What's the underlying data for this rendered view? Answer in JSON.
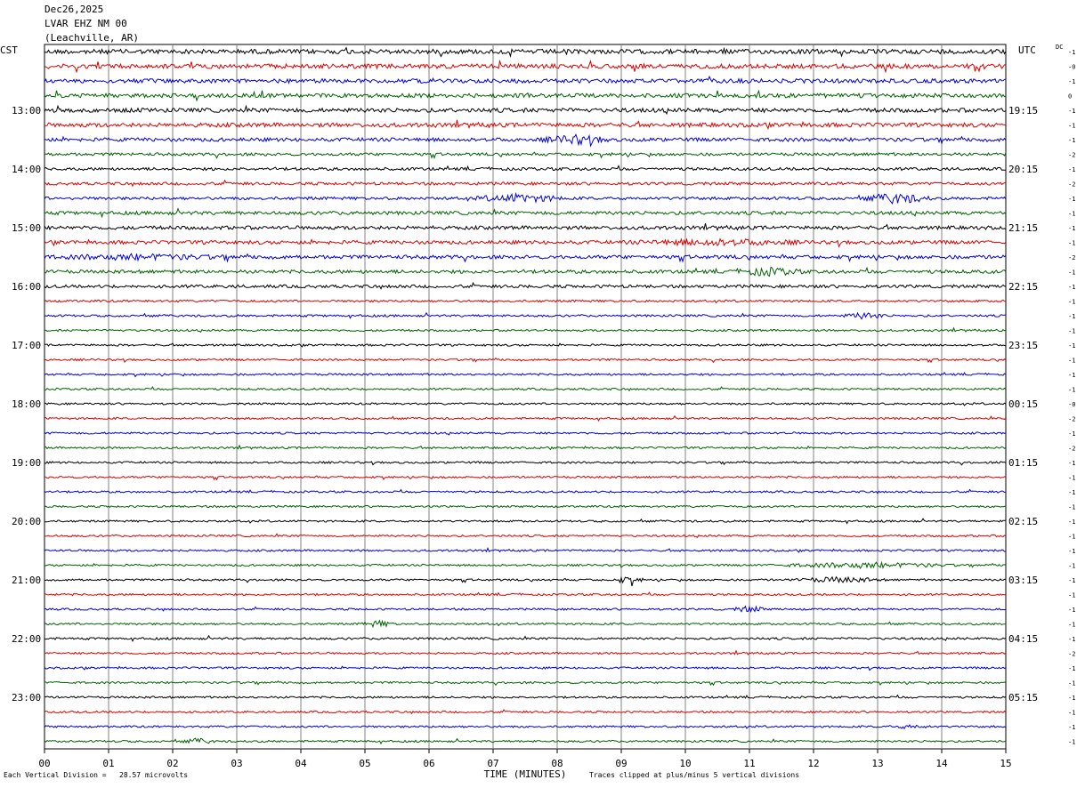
{
  "header": {
    "date": "Dec26,2025",
    "station": "LVAR EHZ NM 00",
    "location": "(Leachville, AR)"
  },
  "axes": {
    "left_tz": "CST",
    "right_tz": "UTC",
    "dc_label": "DC",
    "xlabel": "TIME (MINUTES)"
  },
  "footer": {
    "scale_note": "Each Vertical Division =   28.57 microvolts",
    "clip_note": "Traces clipped at plus/minus 5 vertical divisions"
  },
  "colors": {
    "trace_cycle": [
      "#000000",
      "#dd0000",
      "#0000dd",
      "#006400"
    ],
    "grid": "#808080"
  },
  "chart_data": {
    "type": "line",
    "x_ticks": [
      "00",
      "01",
      "02",
      "03",
      "04",
      "05",
      "06",
      "07",
      "08",
      "09",
      "10",
      "11",
      "12",
      "13",
      "14",
      "15"
    ],
    "xlim": [
      0,
      15
    ],
    "rows_per_hour": 4,
    "left_hour_labels": [
      "13:00",
      "14:00",
      "15:00",
      "16:00",
      "17:00",
      "18:00",
      "19:00",
      "20:00",
      "21:00",
      "22:00",
      "23:00"
    ],
    "right_hour_labels": [
      "19:15",
      "20:15",
      "21:15",
      "22:15",
      "23:15",
      "00:15",
      "01:15",
      "02:15",
      "03:15",
      "04:15",
      "05:15"
    ],
    "dc_offsets": [
      "-1",
      "-0",
      "-1",
      "0",
      "-1",
      "-1",
      "-1",
      "-2",
      "-1",
      "-2",
      "-1",
      "-1",
      "-1",
      "-1",
      "-2",
      "-1",
      "-1",
      "-1",
      "-1",
      "-1",
      "-1",
      "-1",
      "-1",
      "-1",
      "-0",
      "-2",
      "-1",
      "-2",
      "-1",
      "-1",
      "-1",
      "-1",
      "-1",
      "-1",
      "-1",
      "-1",
      "-1",
      "-1",
      "-1",
      "-1",
      "-1",
      "-2",
      "-1",
      "-1",
      "-1",
      "-1",
      "-1",
      "-1"
    ],
    "noise_level": [
      2.5,
      2.5,
      2.3,
      2.3,
      2.3,
      2.3,
      2.0,
      1.6,
      1.6,
      1.6,
      1.6,
      1.9,
      2.0,
      2.0,
      2.0,
      1.9,
      1.7,
      1.2,
      1.2,
      1.1,
      1.1,
      1.1,
      1.1,
      1.1,
      1.1,
      1.1,
      1.1,
      1.1,
      1.1,
      1.1,
      1.1,
      1.1,
      1.1,
      1.1,
      1.1,
      1.1,
      1.1,
      1.1,
      1.1,
      1.1,
      1.2,
      1.1,
      1.1,
      1.1,
      1.1,
      1.1,
      1.1,
      1.1
    ],
    "events": [
      {
        "row": 6,
        "minute": 8.3,
        "width": 0.6,
        "amp": 4
      },
      {
        "row": 10,
        "minute": 7.4,
        "width": 0.8,
        "amp": 4
      },
      {
        "row": 10,
        "minute": 13.3,
        "width": 0.6,
        "amp": 5
      },
      {
        "row": 13,
        "minute": 10.5,
        "width": 1.5,
        "amp": 2.5
      },
      {
        "row": 15,
        "minute": 11.3,
        "width": 0.6,
        "amp": 3.5
      },
      {
        "row": 14,
        "minute": 1.5,
        "width": 1.6,
        "amp": 2
      },
      {
        "row": 18,
        "minute": 12.8,
        "width": 0.4,
        "amp": 3
      },
      {
        "row": 35,
        "minute": 12.8,
        "width": 1.6,
        "amp": 2.5
      },
      {
        "row": 36,
        "minute": 12.4,
        "width": 0.8,
        "amp": 2.5
      },
      {
        "row": 36,
        "minute": 9.1,
        "width": 0.3,
        "amp": 3
      },
      {
        "row": 38,
        "minute": 11.0,
        "width": 0.3,
        "amp": 3
      },
      {
        "row": 39,
        "minute": 5.2,
        "width": 0.3,
        "amp": 3
      },
      {
        "row": 46,
        "minute": 13.5,
        "width": 0.4,
        "amp": 1.5
      },
      {
        "row": 47,
        "minute": 2.4,
        "width": 0.3,
        "amp": 2.5
      }
    ]
  }
}
